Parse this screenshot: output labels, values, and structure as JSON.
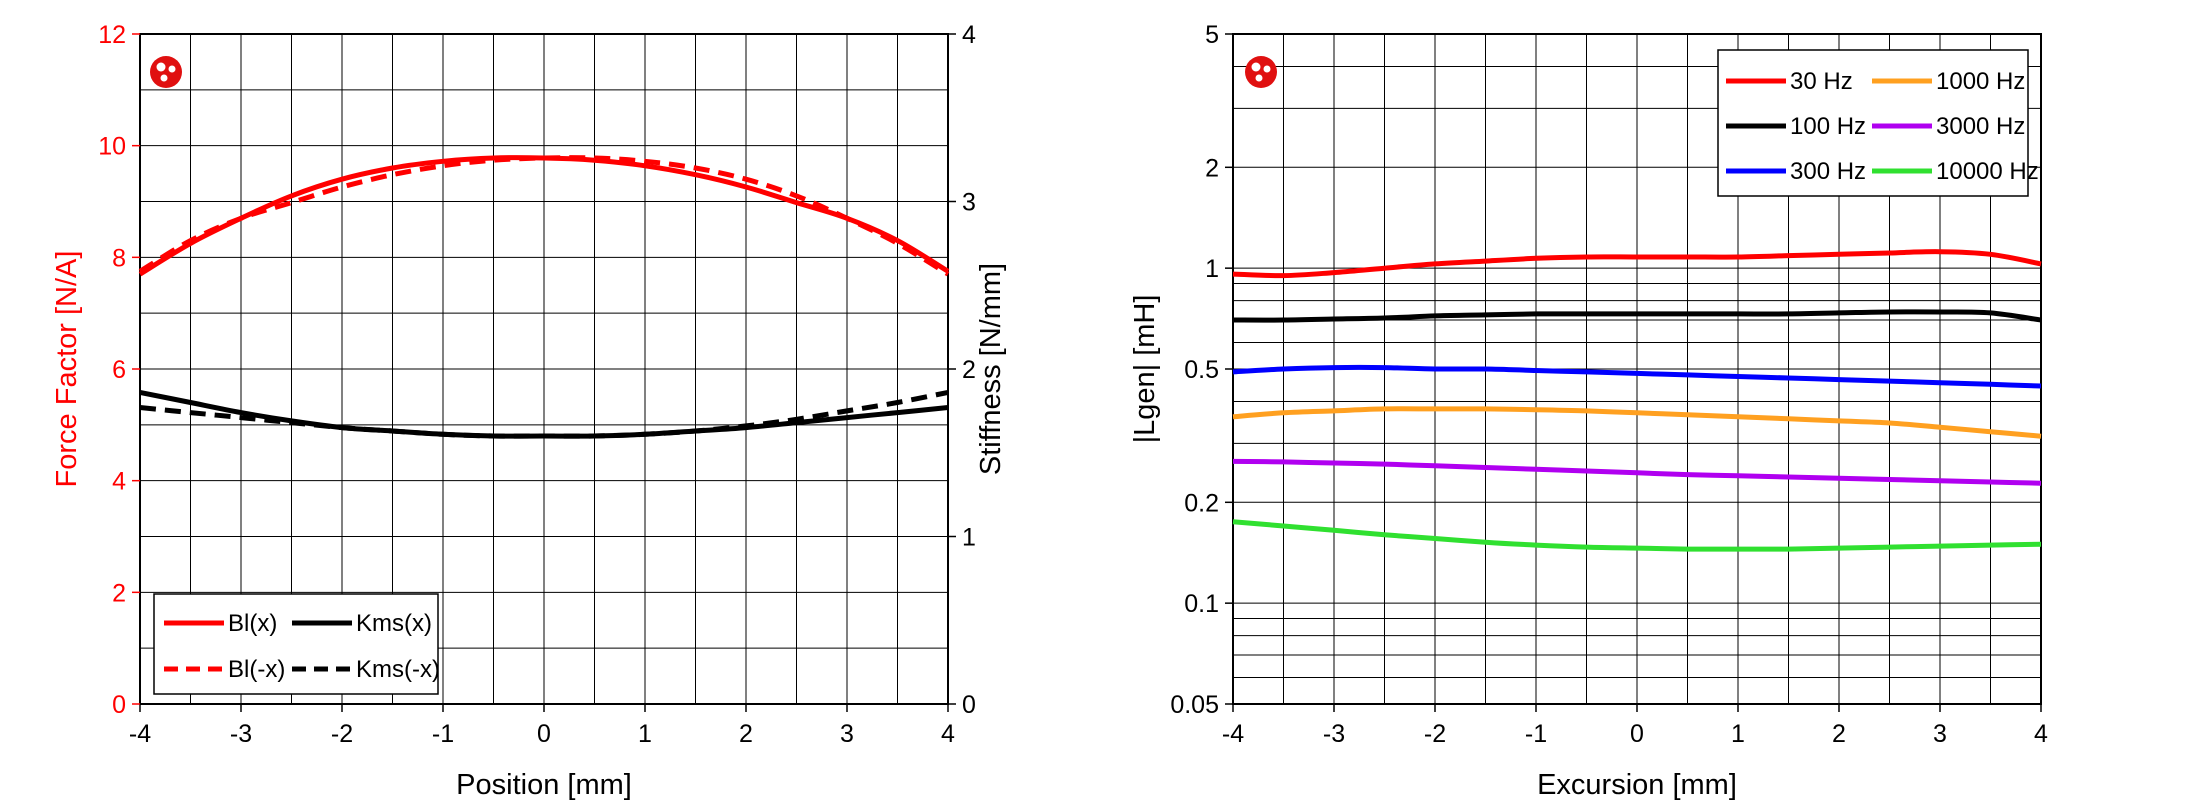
{
  "chart_data": [
    {
      "type": "line",
      "title": "",
      "xlabel": "Position [mm]",
      "ylabel_left": "Force Factor [N/A]",
      "ylabel_right": "Stiffness [N/mm]",
      "xlim": [
        -4,
        4
      ],
      "ylim_left": [
        0,
        12
      ],
      "ylim_right": [
        0,
        4
      ],
      "x_ticks": [
        "-4",
        "-3",
        "-2",
        "-1",
        "0",
        "1",
        "2",
        "3",
        "4"
      ],
      "y_ticks_left": [
        "0",
        "2",
        "4",
        "6",
        "8",
        "10",
        "12"
      ],
      "y_ticks_right": [
        "0",
        "1",
        "2",
        "3",
        "4"
      ],
      "grid": true,
      "legend_position": "bottom-left",
      "logo_icon": "red-circle-logo-icon",
      "colors": {
        "left_axis": "#ff0000",
        "right_axis": "#000000"
      },
      "series": [
        {
          "name": "Bl(x)",
          "axis": "left",
          "color": "#ff0000",
          "dash": "solid",
          "x": [
            -4,
            -3.5,
            -3,
            -2.5,
            -2,
            -1.5,
            -1,
            -0.5,
            0,
            0.5,
            1,
            1.5,
            2,
            2.5,
            3,
            3.5,
            4
          ],
          "y": [
            7.7,
            8.25,
            8.7,
            9.1,
            9.4,
            9.6,
            9.72,
            9.78,
            9.78,
            9.74,
            9.64,
            9.48,
            9.26,
            8.98,
            8.7,
            8.3,
            7.75
          ]
        },
        {
          "name": "Bl(-x)",
          "axis": "left",
          "color": "#ff0000",
          "dash": "dashed",
          "x": [
            -4,
            -3.5,
            -3,
            -2.5,
            -2,
            -1.5,
            -1,
            -0.5,
            0,
            0.5,
            1,
            1.5,
            2,
            2.5,
            3,
            3.5,
            4
          ],
          "y": [
            7.75,
            8.3,
            8.7,
            8.98,
            9.26,
            9.48,
            9.64,
            9.74,
            9.78,
            9.78,
            9.72,
            9.6,
            9.4,
            9.1,
            8.7,
            8.25,
            7.7
          ]
        },
        {
          "name": "Kms(x)",
          "axis": "right",
          "color": "#000000",
          "dash": "solid",
          "x": [
            -4,
            -3.5,
            -3,
            -2.5,
            -2,
            -1.5,
            -1,
            -0.5,
            0,
            0.5,
            1,
            1.5,
            2,
            2.5,
            3,
            3.5,
            4
          ],
          "y": [
            1.86,
            1.8,
            1.74,
            1.69,
            1.65,
            1.63,
            1.61,
            1.6,
            1.6,
            1.6,
            1.61,
            1.63,
            1.65,
            1.68,
            1.71,
            1.74,
            1.77
          ]
        },
        {
          "name": "Kms(-x)",
          "axis": "right",
          "color": "#000000",
          "dash": "dashed",
          "x": [
            -4,
            -3.5,
            -3,
            -2.5,
            -2,
            -1.5,
            -1,
            -0.5,
            0,
            0.5,
            1,
            1.5,
            2,
            2.5,
            3,
            3.5,
            4
          ],
          "y": [
            1.77,
            1.74,
            1.71,
            1.68,
            1.65,
            1.63,
            1.61,
            1.6,
            1.6,
            1.6,
            1.61,
            1.63,
            1.66,
            1.7,
            1.75,
            1.8,
            1.86
          ]
        }
      ]
    },
    {
      "type": "line",
      "title": "",
      "xlabel": "Excursion [mm]",
      "ylabel": "|Lgen| [mH]",
      "yscale": "log",
      "xlim": [
        -4,
        4
      ],
      "ylim": [
        0.05,
        5
      ],
      "x_ticks": [
        "-4",
        "-3",
        "-2",
        "-1",
        "0",
        "1",
        "2",
        "3",
        "4"
      ],
      "y_ticks": [
        {
          "value": 0.05,
          "label": "0.05"
        },
        {
          "value": 0.1,
          "label": "0.1"
        },
        {
          "value": 0.2,
          "label": "0.2"
        },
        {
          "value": 0.5,
          "label": "0.5"
        },
        {
          "value": 1,
          "label": "1"
        },
        {
          "value": 2,
          "label": "2"
        },
        {
          "value": 5,
          "label": "5"
        }
      ],
      "grid": true,
      "legend_position": "top-right",
      "logo_icon": "red-circle-logo-icon",
      "series": [
        {
          "name": "30 Hz",
          "color": "#ff0000",
          "x": [
            -4,
            -3.5,
            -3,
            -2.5,
            -2,
            -1.5,
            -1,
            -0.5,
            0,
            0.5,
            1,
            1.5,
            2,
            2.5,
            3,
            3.5,
            4
          ],
          "y": [
            0.96,
            0.95,
            0.97,
            1.0,
            1.03,
            1.05,
            1.07,
            1.08,
            1.08,
            1.08,
            1.08,
            1.09,
            1.1,
            1.11,
            1.12,
            1.1,
            1.03
          ]
        },
        {
          "name": "100 Hz",
          "color": "#000000",
          "x": [
            -4,
            -3.5,
            -3,
            -2.5,
            -2,
            -1.5,
            -1,
            -0.5,
            0,
            0.5,
            1,
            1.5,
            2,
            2.5,
            3,
            3.5,
            4
          ],
          "y": [
            0.7,
            0.7,
            0.705,
            0.71,
            0.72,
            0.725,
            0.73,
            0.73,
            0.73,
            0.73,
            0.73,
            0.73,
            0.735,
            0.74,
            0.74,
            0.735,
            0.7
          ]
        },
        {
          "name": "300 Hz",
          "color": "#0000ff",
          "x": [
            -4,
            -3.5,
            -3,
            -2.5,
            -2,
            -1.5,
            -1,
            -0.5,
            0,
            0.5,
            1,
            1.5,
            2,
            2.5,
            3,
            3.5,
            4
          ],
          "y": [
            0.49,
            0.5,
            0.505,
            0.505,
            0.5,
            0.5,
            0.495,
            0.49,
            0.485,
            0.48,
            0.475,
            0.47,
            0.465,
            0.46,
            0.455,
            0.45,
            0.445
          ]
        },
        {
          "name": "1000 Hz",
          "color": "#ffa020",
          "x": [
            -4,
            -3.5,
            -3,
            -2.5,
            -2,
            -1.5,
            -1,
            -0.5,
            0,
            0.5,
            1,
            1.5,
            2,
            2.5,
            3,
            3.5,
            4
          ],
          "y": [
            0.36,
            0.37,
            0.375,
            0.38,
            0.38,
            0.38,
            0.378,
            0.375,
            0.37,
            0.365,
            0.36,
            0.355,
            0.35,
            0.345,
            0.335,
            0.325,
            0.315
          ]
        },
        {
          "name": "3000 Hz",
          "color": "#b000f0",
          "x": [
            -4,
            -3.5,
            -3,
            -2.5,
            -2,
            -1.5,
            -1,
            -0.5,
            0,
            0.5,
            1,
            1.5,
            2,
            2.5,
            3,
            3.5,
            4
          ],
          "y": [
            0.265,
            0.264,
            0.262,
            0.26,
            0.257,
            0.254,
            0.251,
            0.248,
            0.245,
            0.242,
            0.24,
            0.238,
            0.236,
            0.234,
            0.232,
            0.23,
            0.228
          ]
        },
        {
          "name": "10000 Hz",
          "color": "#30e030",
          "x": [
            -4,
            -3.5,
            -3,
            -2.5,
            -2,
            -1.5,
            -1,
            -0.5,
            0,
            0.5,
            1,
            1.5,
            2,
            2.5,
            3,
            3.5,
            4
          ],
          "y": [
            0.175,
            0.17,
            0.165,
            0.16,
            0.156,
            0.152,
            0.149,
            0.147,
            0.146,
            0.145,
            0.145,
            0.145,
            0.146,
            0.147,
            0.148,
            0.149,
            0.15
          ]
        }
      ]
    }
  ]
}
